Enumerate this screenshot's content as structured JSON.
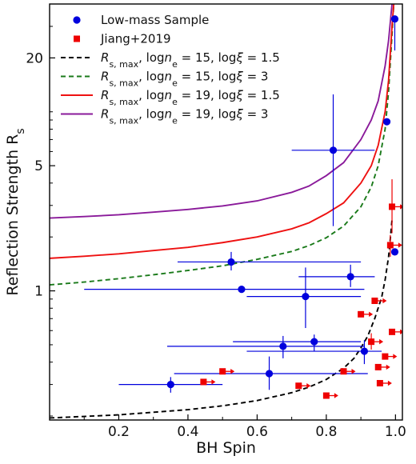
{
  "chart_data": {
    "type": "scatter",
    "xlabel": "BH Spin",
    "ylabel": "Reflection Strength R_s",
    "xlim": [
      0.0,
      1.02
    ],
    "ylim": [
      0.19,
      40
    ],
    "yscale": "log",
    "grid": false,
    "legend_position": "top-left",
    "x_ticks": [
      0.2,
      0.4,
      0.6,
      0.8,
      1.0
    ],
    "x_tick_labels": [
      "0.2",
      "0.4",
      "0.6",
      "0.8",
      "1.0"
    ],
    "y_ticks": [
      1,
      5,
      20
    ],
    "y_tick_labels": [
      "1",
      "5",
      "20"
    ],
    "series": [
      {
        "name": "Low-mass Sample",
        "kind": "errorbar",
        "marker": "circle",
        "color": "#0000dd",
        "points": [
          {
            "x": 0.998,
            "y": 33,
            "ylo": 22,
            "yhi": 33
          },
          {
            "x": 0.975,
            "y": 8.8
          },
          {
            "x": 0.82,
            "y": 6.1,
            "xlo": 0.7,
            "xhi": 0.94,
            "ylo": 2.3,
            "yhi": 12.5
          },
          {
            "x": 0.998,
            "y": 1.65
          },
          {
            "x": 0.525,
            "y": 1.45,
            "xlo": 0.37,
            "xhi": 0.9,
            "ylo": 1.3,
            "yhi": 1.65
          },
          {
            "x": 0.87,
            "y": 1.2,
            "xlo": 0.72,
            "xhi": 0.94,
            "ylo": 1.05,
            "yhi": 1.4
          },
          {
            "x": 0.555,
            "y": 1.02,
            "xlo": 0.1,
            "xhi": 0.91
          },
          {
            "x": 0.74,
            "y": 0.93,
            "xlo": 0.57,
            "xhi": 0.9,
            "ylo": 0.62,
            "yhi": 1.35
          },
          {
            "x": 0.765,
            "y": 0.52,
            "xlo": 0.53,
            "xhi": 0.9,
            "ylo": 0.46,
            "yhi": 0.57
          },
          {
            "x": 0.675,
            "y": 0.49,
            "xlo": 0.34,
            "xhi": 0.91,
            "ylo": 0.42,
            "yhi": 0.56
          },
          {
            "x": 0.91,
            "y": 0.46,
            "xlo": 0.57,
            "xhi": 0.96,
            "ylo": 0.39,
            "yhi": 0.53
          },
          {
            "x": 0.635,
            "y": 0.345,
            "xlo": 0.36,
            "xhi": 0.92,
            "ylo": 0.28,
            "yhi": 0.43
          },
          {
            "x": 0.35,
            "y": 0.3,
            "xlo": 0.2,
            "xhi": 0.5,
            "ylo": 0.27,
            "yhi": 0.33
          }
        ]
      },
      {
        "name": "Jiang+2019",
        "kind": "lower-limit",
        "marker": "square",
        "color": "#ee0000",
        "points": [
          {
            "x": 0.99,
            "y": 2.95,
            "ylo": 2.1,
            "yhi": 4.2
          },
          {
            "x": 0.985,
            "y": 1.8,
            "ylo": 1.55,
            "yhi": 2.05
          },
          {
            "x": 0.94,
            "y": 0.88
          },
          {
            "x": 0.9,
            "y": 0.74
          },
          {
            "x": 0.99,
            "y": 0.59
          },
          {
            "x": 0.93,
            "y": 0.52,
            "ylo": 0.47,
            "yhi": 0.58
          },
          {
            "x": 0.97,
            "y": 0.43
          },
          {
            "x": 0.5,
            "y": 0.355
          },
          {
            "x": 0.85,
            "y": 0.355
          },
          {
            "x": 0.95,
            "y": 0.375
          },
          {
            "x": 0.445,
            "y": 0.31
          },
          {
            "x": 0.72,
            "y": 0.295
          },
          {
            "x": 0.955,
            "y": 0.305
          },
          {
            "x": 0.8,
            "y": 0.26
          }
        ]
      }
    ],
    "curves": [
      {
        "name": "R_s,max, log n_e = 15, log xi = 1.5",
        "color": "#000000",
        "style": "dashed",
        "points": [
          [
            0.0,
            0.195
          ],
          [
            0.2,
            0.203
          ],
          [
            0.4,
            0.217
          ],
          [
            0.5,
            0.228
          ],
          [
            0.6,
            0.244
          ],
          [
            0.7,
            0.27
          ],
          [
            0.75,
            0.29
          ],
          [
            0.8,
            0.32
          ],
          [
            0.85,
            0.37
          ],
          [
            0.88,
            0.42
          ],
          [
            0.9,
            0.48
          ],
          [
            0.92,
            0.56
          ],
          [
            0.94,
            0.7
          ],
          [
            0.96,
            0.92
          ],
          [
            0.97,
            1.15
          ],
          [
            0.98,
            1.55
          ],
          [
            0.985,
            1.95
          ],
          [
            0.99,
            2.5
          ]
        ]
      },
      {
        "name": "R_s,max, log n_e = 15, log xi = 3",
        "color": "#1a7a1a",
        "style": "dashed",
        "points": [
          [
            0.0,
            1.08
          ],
          [
            0.1,
            1.12
          ],
          [
            0.2,
            1.17
          ],
          [
            0.3,
            1.23
          ],
          [
            0.4,
            1.3
          ],
          [
            0.5,
            1.38
          ],
          [
            0.6,
            1.5
          ],
          [
            0.7,
            1.66
          ],
          [
            0.75,
            1.79
          ],
          [
            0.8,
            1.98
          ],
          [
            0.85,
            2.3
          ],
          [
            0.9,
            2.95
          ],
          [
            0.93,
            3.8
          ],
          [
            0.95,
            5.0
          ],
          [
            0.97,
            8.0
          ],
          [
            0.98,
            13.0
          ],
          [
            0.99,
            27
          ],
          [
            0.995,
            40
          ]
        ]
      },
      {
        "name": "R_s,max, log n_e = 19, log xi = 1.5",
        "color": "#ee1111",
        "style": "solid",
        "points": [
          [
            0.0,
            1.52
          ],
          [
            0.1,
            1.56
          ],
          [
            0.2,
            1.61
          ],
          [
            0.3,
            1.68
          ],
          [
            0.4,
            1.75
          ],
          [
            0.5,
            1.86
          ],
          [
            0.6,
            2.0
          ],
          [
            0.7,
            2.22
          ],
          [
            0.75,
            2.4
          ],
          [
            0.8,
            2.7
          ],
          [
            0.85,
            3.1
          ],
          [
            0.9,
            4.0
          ],
          [
            0.93,
            5.0
          ],
          [
            0.95,
            6.5
          ],
          [
            0.97,
            10.0
          ],
          [
            0.98,
            15.0
          ],
          [
            0.99,
            30
          ],
          [
            0.995,
            40
          ]
        ]
      },
      {
        "name": "R_s,max, log n_e = 19, log xi = 3",
        "color": "#8a1a9a",
        "style": "solid",
        "points": [
          [
            0.0,
            2.55
          ],
          [
            0.1,
            2.6
          ],
          [
            0.2,
            2.66
          ],
          [
            0.3,
            2.75
          ],
          [
            0.4,
            2.85
          ],
          [
            0.5,
            2.98
          ],
          [
            0.6,
            3.18
          ],
          [
            0.7,
            3.55
          ],
          [
            0.75,
            3.85
          ],
          [
            0.8,
            4.4
          ],
          [
            0.85,
            5.2
          ],
          [
            0.9,
            7.0
          ],
          [
            0.93,
            9.0
          ],
          [
            0.95,
            11.5
          ],
          [
            0.97,
            18.0
          ],
          [
            0.98,
            25.0
          ],
          [
            0.99,
            40
          ]
        ]
      }
    ]
  }
}
